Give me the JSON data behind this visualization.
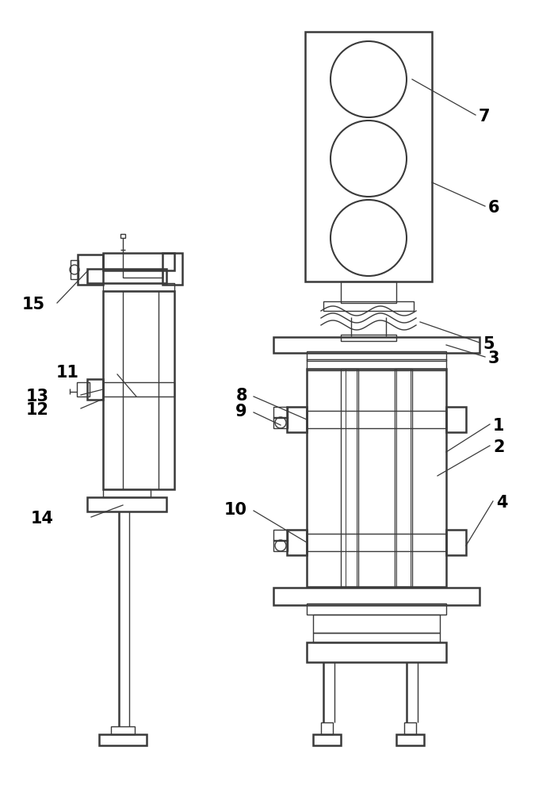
{
  "bg_color": "#ffffff",
  "line_color": "#3a3a3a",
  "lw": 1.0,
  "thick_lw": 1.8,
  "label_color": "#000000",
  "label_fs": 15,
  "leader_color": "#3a3a3a",
  "leader_lw": 0.9
}
